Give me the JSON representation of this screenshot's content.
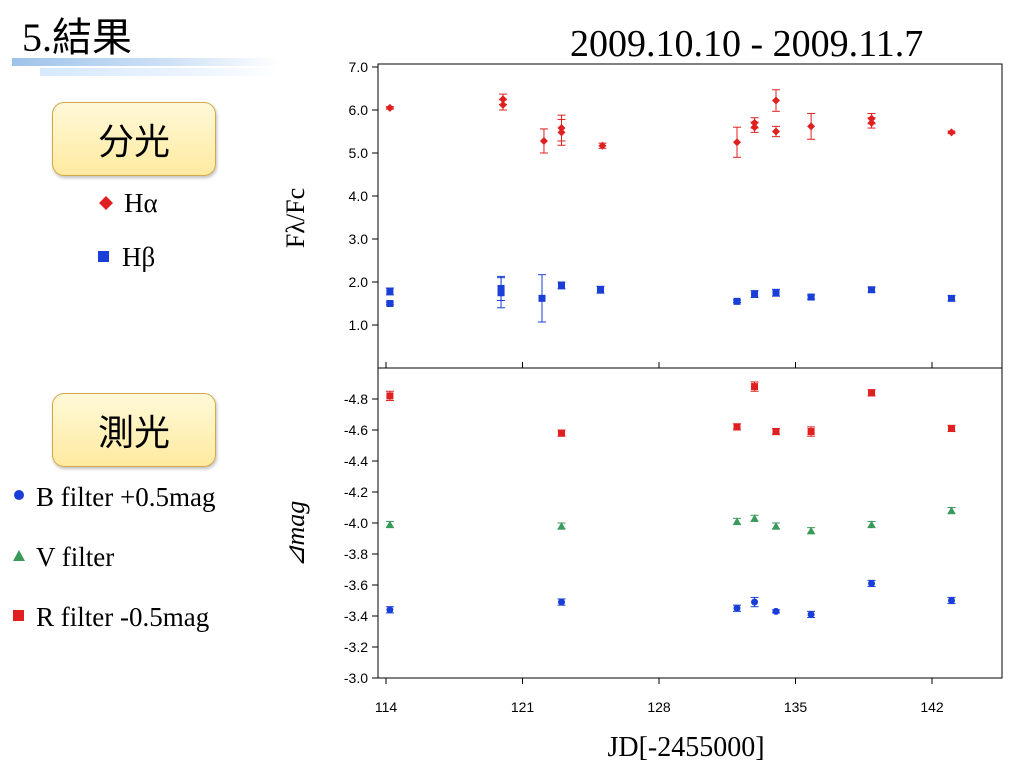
{
  "slide": {
    "title": "5.結果",
    "date_range": "2009.10.10 - 2009.11.7",
    "spectro_label": "分光",
    "photo_label": "測光"
  },
  "legend": {
    "spectro": [
      {
        "label": "Hα",
        "color": "#e02020",
        "shape": "diamond"
      },
      {
        "label": "Hβ",
        "color": "#1a3fd8",
        "shape": "square"
      }
    ],
    "photo": [
      {
        "label": "B filter +0.5mag",
        "color": "#1a3fd8",
        "shape": "circle"
      },
      {
        "label": "V filter",
        "color": "#3a9a5a",
        "shape": "triangle"
      },
      {
        "label": "R filter -0.5mag",
        "color": "#e02020",
        "shape": "square"
      }
    ]
  },
  "chart_data": [
    {
      "type": "scatter",
      "title": "",
      "xlabel": "",
      "ylabel": "Fλ/Fc",
      "xlim": [
        114,
        146
      ],
      "ylim": [
        0,
        7
      ],
      "yticks": [
        "1.0",
        "2.0",
        "3.0",
        "4.0",
        "5.0",
        "6.0",
        "7.0"
      ],
      "series": [
        {
          "name": "Hα",
          "color": "#e02020",
          "shape": "diamond",
          "points": [
            {
              "x": 114.2,
              "y": 6.05,
              "err": 0.03
            },
            {
              "x": 120.0,
              "y": 6.25,
              "err": 0.12
            },
            {
              "x": 120.0,
              "y": 6.12,
              "err": 0.12
            },
            {
              "x": 122.1,
              "y": 5.28,
              "err": 0.28
            },
            {
              "x": 123.0,
              "y": 5.58,
              "err": 0.3
            },
            {
              "x": 123.0,
              "y": 5.48,
              "err": 0.3
            },
            {
              "x": 125.1,
              "y": 5.17,
              "err": 0.06
            },
            {
              "x": 132.0,
              "y": 5.25,
              "err": 0.35
            },
            {
              "x": 132.9,
              "y": 5.7,
              "err": 0.12
            },
            {
              "x": 132.9,
              "y": 5.6,
              "err": 0.12
            },
            {
              "x": 134.0,
              "y": 6.22,
              "err": 0.25
            },
            {
              "x": 134.0,
              "y": 5.5,
              "err": 0.12
            },
            {
              "x": 135.8,
              "y": 5.62,
              "err": 0.3
            },
            {
              "x": 138.9,
              "y": 5.8,
              "err": 0.12
            },
            {
              "x": 138.9,
              "y": 5.7,
              "err": 0.12
            },
            {
              "x": 143.0,
              "y": 5.48,
              "err": 0.03
            }
          ]
        },
        {
          "name": "Hβ",
          "color": "#1a3fd8",
          "shape": "square",
          "points": [
            {
              "x": 114.2,
              "y": 1.78,
              "err": 0.08
            },
            {
              "x": 114.2,
              "y": 1.5,
              "err": 0.03
            },
            {
              "x": 119.9,
              "y": 1.85,
              "err": 0.28
            },
            {
              "x": 119.9,
              "y": 1.75,
              "err": 0.35
            },
            {
              "x": 122.0,
              "y": 1.62,
              "err": 0.55
            },
            {
              "x": 123.0,
              "y": 1.92,
              "err": 0.08
            },
            {
              "x": 125.0,
              "y": 1.82,
              "err": 0.08
            },
            {
              "x": 132.0,
              "y": 1.55,
              "err": 0.03
            },
            {
              "x": 132.9,
              "y": 1.72,
              "err": 0.08
            },
            {
              "x": 134.0,
              "y": 1.75,
              "err": 0.08
            },
            {
              "x": 135.8,
              "y": 1.65,
              "err": 0.05
            },
            {
              "x": 138.9,
              "y": 1.82,
              "err": 0.06
            },
            {
              "x": 143.0,
              "y": 1.62,
              "err": 0.06
            }
          ]
        }
      ]
    },
    {
      "type": "scatter",
      "title": "",
      "xlabel": "JD[-2455000]",
      "ylabel": "⊿mag",
      "xlim": [
        114,
        146
      ],
      "ylim": [
        -3.0,
        -5.0
      ],
      "inverted": true,
      "xticks": [
        "114",
        "121",
        "128",
        "135",
        "142"
      ],
      "yticks": [
        "-3.0",
        "-3.2",
        "-3.4",
        "-3.6",
        "-3.8",
        "-4.0",
        "-4.2",
        "-4.4",
        "-4.6",
        "-4.8"
      ],
      "series": [
        {
          "name": "R filter -0.5mag",
          "color": "#e02020",
          "shape": "square",
          "points": [
            {
              "x": 114.2,
              "y": -4.82,
              "err": 0.03
            },
            {
              "x": 123.0,
              "y": -4.58,
              "err": 0.02
            },
            {
              "x": 132.0,
              "y": -4.62,
              "err": 0.02
            },
            {
              "x": 132.9,
              "y": -4.88,
              "err": 0.03
            },
            {
              "x": 134.0,
              "y": -4.59,
              "err": 0.02
            },
            {
              "x": 135.8,
              "y": -4.59,
              "err": 0.03
            },
            {
              "x": 138.9,
              "y": -4.84,
              "err": 0.02
            },
            {
              "x": 143.0,
              "y": -4.61,
              "err": 0.02
            }
          ]
        },
        {
          "name": "V filter",
          "color": "#3a9a5a",
          "shape": "triangle",
          "points": [
            {
              "x": 114.2,
              "y": -3.99,
              "err": 0.02
            },
            {
              "x": 123.0,
              "y": -3.98,
              "err": 0.02
            },
            {
              "x": 132.0,
              "y": -4.01,
              "err": 0.02
            },
            {
              "x": 132.9,
              "y": -4.03,
              "err": 0.02
            },
            {
              "x": 134.0,
              "y": -3.98,
              "err": 0.02
            },
            {
              "x": 135.8,
              "y": -3.95,
              "err": 0.02
            },
            {
              "x": 138.9,
              "y": -3.99,
              "err": 0.02
            },
            {
              "x": 143.0,
              "y": -4.08,
              "err": 0.02
            }
          ]
        },
        {
          "name": "B filter +0.5mag",
          "color": "#1a3fd8",
          "shape": "circle",
          "points": [
            {
              "x": 114.2,
              "y": -3.44,
              "err": 0.02
            },
            {
              "x": 123.0,
              "y": -3.49,
              "err": 0.02
            },
            {
              "x": 132.0,
              "y": -3.45,
              "err": 0.02
            },
            {
              "x": 132.9,
              "y": -3.49,
              "err": 0.03
            },
            {
              "x": 134.0,
              "y": -3.43,
              "err": 0.01
            },
            {
              "x": 135.8,
              "y": -3.41,
              "err": 0.02
            },
            {
              "x": 138.9,
              "y": -3.61,
              "err": 0.02
            },
            {
              "x": 143.0,
              "y": -3.5,
              "err": 0.02
            }
          ]
        }
      ]
    }
  ]
}
